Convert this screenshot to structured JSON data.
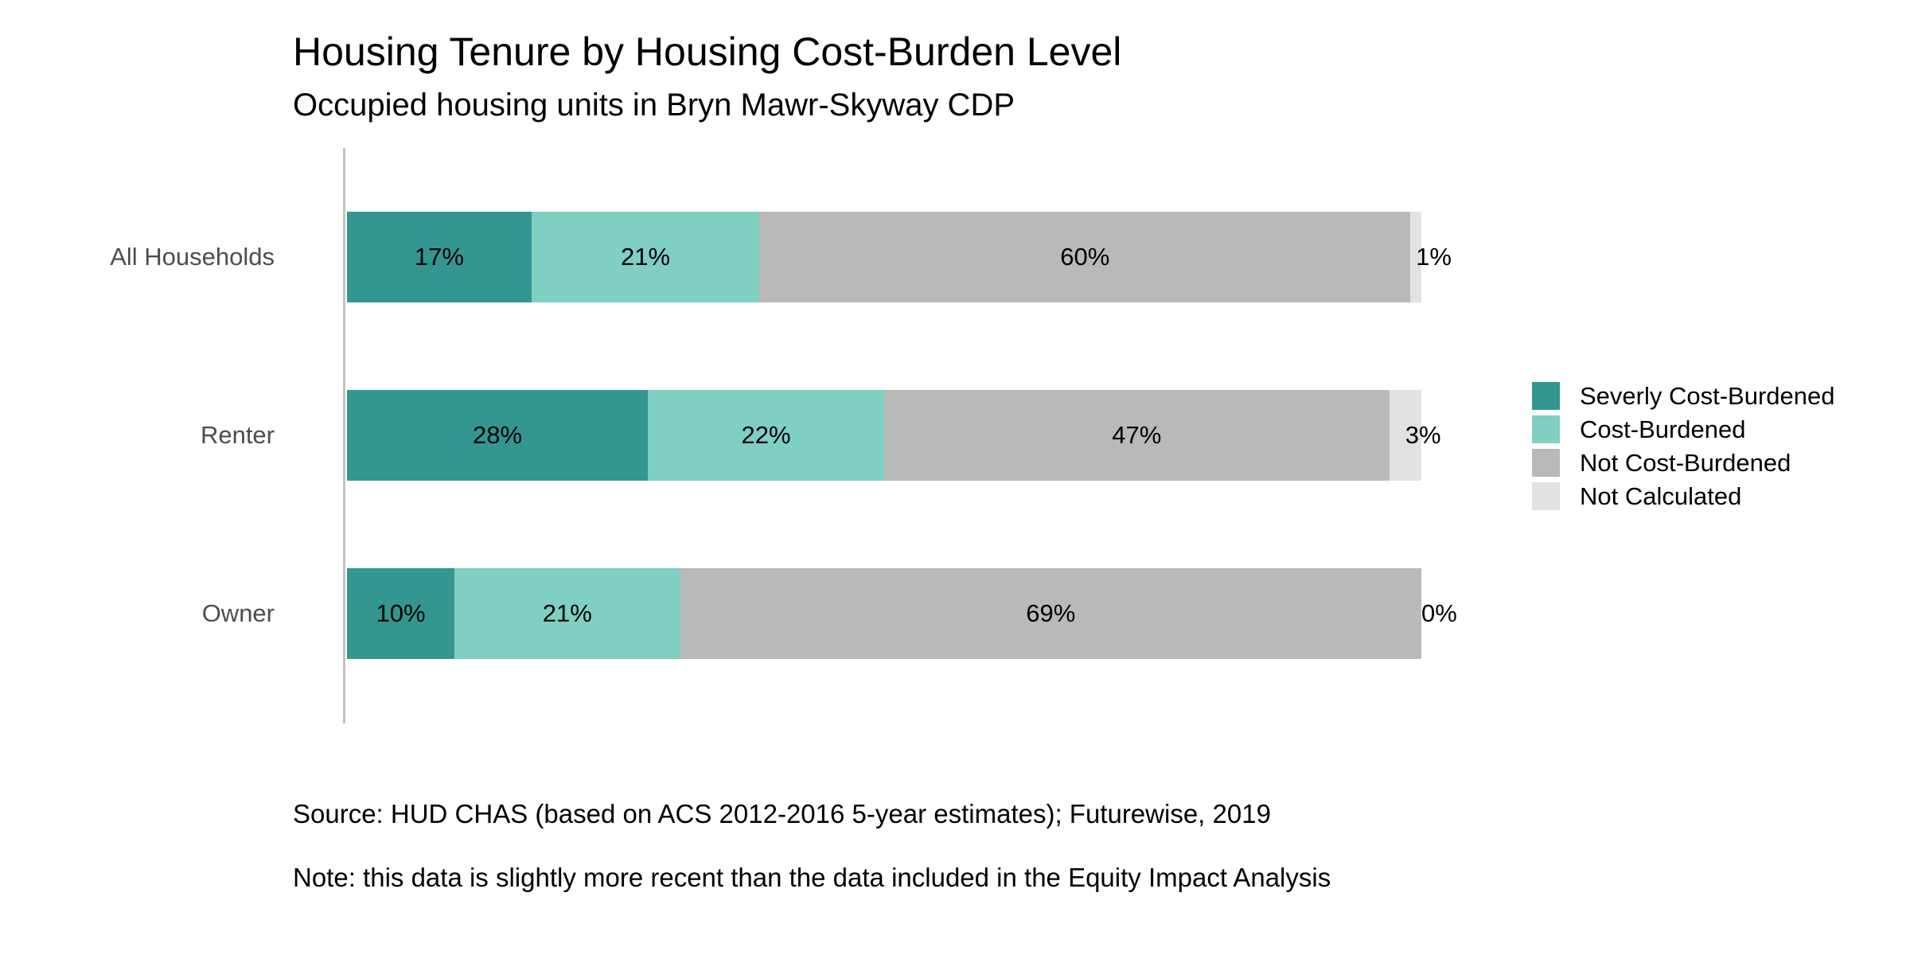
{
  "chart": {
    "title": "Housing Tenure by Housing Cost-Burden Level",
    "subtitle": "Occupied housing units in Bryn Mawr-Skyway CDP",
    "source": "Source: HUD CHAS (based on ACS 2012-2016 5-year estimates); Futurewise, 2019",
    "note": "Note: this data is slightly more recent than the data included in the Equity Impact Analysis"
  },
  "colors": {
    "axis_line": "#C2C2C2",
    "category_label": "#4D4D4D",
    "label_text": "#000000",
    "background": "#FFFFFF"
  },
  "chart_data": {
    "type": "bar",
    "orientation": "horizontal",
    "stacked": true,
    "grid": false,
    "legend_position": "right",
    "value_format": "percent",
    "categories": [
      "All Households",
      "Renter",
      "Owner"
    ],
    "series": [
      {
        "name": "Severly Cost-Burdened",
        "color": "#349690",
        "values": [
          17,
          28,
          10
        ]
      },
      {
        "name": "Cost-Burdened",
        "color": "#7FCFC2",
        "values": [
          21,
          22,
          21
        ]
      },
      {
        "name": "Not Cost-Burdened",
        "color": "#B9B9B9",
        "values": [
          60,
          47,
          69
        ]
      },
      {
        "name": "Not Calculated",
        "color": "#E2E2E2",
        "values": [
          1,
          3,
          0
        ]
      }
    ],
    "segment_labels": [
      [
        "17%",
        "21%",
        "60%",
        "1%"
      ],
      [
        "28%",
        "22%",
        "47%",
        "3%"
      ],
      [
        "10%",
        "21%",
        "69%",
        "0%"
      ]
    ],
    "title": "Housing Tenure by Housing Cost-Burden Level",
    "xlabel": "",
    "ylabel": "",
    "xlim": [
      0,
      100
    ]
  }
}
